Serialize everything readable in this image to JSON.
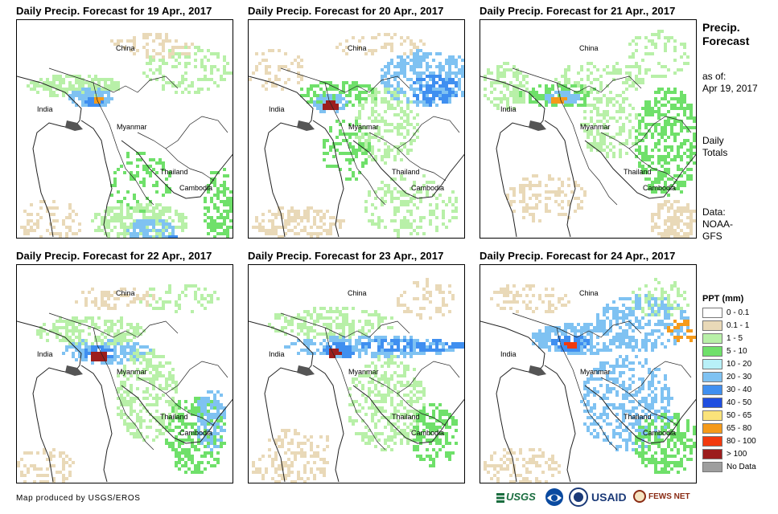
{
  "panels": [
    {
      "title": "Daily Precip. Forecast for 19 Apr., 2017",
      "labels": {
        "china": "China",
        "india": "India",
        "myanmar": "Myanmar",
        "thailand": "Thailand",
        "cambodia": "Cambodia"
      }
    },
    {
      "title": "Daily Precip. Forecast for 20 Apr., 2017",
      "labels": {
        "china": "China",
        "india": "India",
        "myanmar": "Myanmar",
        "thailand": "Thailand",
        "cambodia": "Cambodia"
      }
    },
    {
      "title": "Daily Precip. Forecast for 21 Apr., 2017",
      "labels": {
        "china": "China",
        "india": "India",
        "myanmar": "Myanmar",
        "thailand": "Thailand",
        "cambodia": "Cambodia"
      }
    },
    {
      "title": "Daily Precip. Forecast for 22 Apr., 2017",
      "labels": {
        "china": "China",
        "india": "India",
        "myanmar": "Myanmar",
        "thailand": "Thailand",
        "cambodia": "Cambodia"
      }
    },
    {
      "title": "Daily Precip. Forecast for 23 Apr., 2017",
      "labels": {
        "china": "China",
        "india": "India",
        "myanmar": "Myanmar",
        "thailand": "Thailand",
        "cambodia": "Cambodia"
      }
    },
    {
      "title": "Daily Precip. Forecast for 24 Apr., 2017",
      "labels": {
        "china": "China",
        "india": "India",
        "myanmar": "Myanmar",
        "thailand": "Thailand",
        "cambodia": "Cambodia"
      }
    }
  ],
  "sidebar": {
    "title_line1": "Precip.",
    "title_line2": "Forecast",
    "asof_label": "as of:",
    "asof_date": "Apr 19, 2017",
    "totals_line1": "Daily",
    "totals_line2": "Totals",
    "data_label": "Data:",
    "data_line1": "NOAA-",
    "data_line2": "GFS"
  },
  "legend": {
    "title": "PPT (mm)",
    "items": [
      {
        "label": "0 - 0.1",
        "color": "#ffffff"
      },
      {
        "label": "0.1 - 1",
        "color": "#e9d9b8"
      },
      {
        "label": "1 - 5",
        "color": "#b8f0a8"
      },
      {
        "label": "5 - 10",
        "color": "#6fe06a"
      },
      {
        "label": "10 - 20",
        "color": "#b8f0f8"
      },
      {
        "label": "20 - 30",
        "color": "#7fc2f2"
      },
      {
        "label": "30 - 40",
        "color": "#3f8ff0"
      },
      {
        "label": "40 - 50",
        "color": "#1f4fe0"
      },
      {
        "label": "50 - 65",
        "color": "#fbe37a"
      },
      {
        "label": "65 - 80",
        "color": "#f59a1a"
      },
      {
        "label": "80 - 100",
        "color": "#f23a0e"
      },
      {
        "label": "> 100",
        "color": "#9c1d1d"
      },
      {
        "label": "No Data",
        "color": "#9e9e9e"
      }
    ]
  },
  "footer": {
    "credit": "Map produced by USGS/EROS"
  },
  "logos": {
    "usgs": "USGS",
    "usaid": "USAID",
    "fewsnet": "FEWS NET"
  }
}
